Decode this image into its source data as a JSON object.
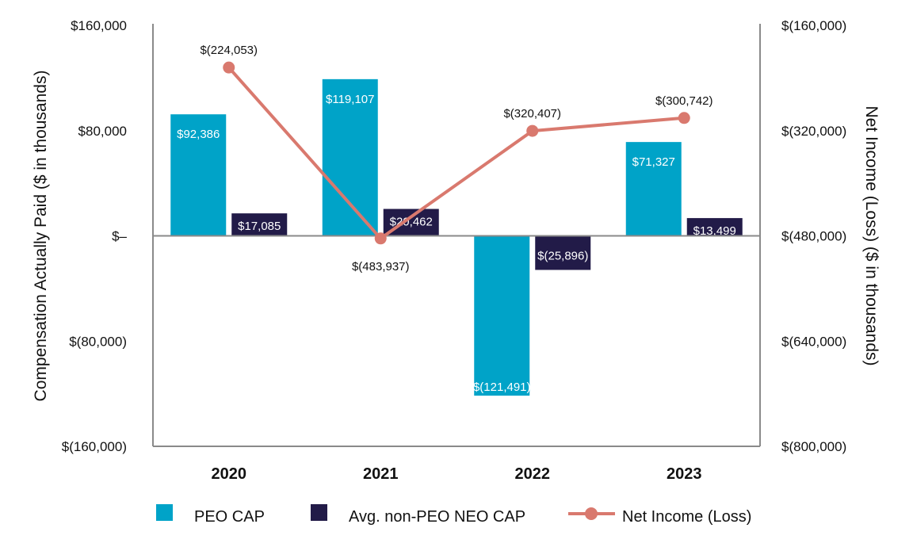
{
  "colors": {
    "peo": "#00A3C8",
    "neo": "#221B48",
    "net_income": "#D9796E",
    "axis": "#8a8a8a"
  },
  "chart_data": {
    "type": "bar",
    "categories": [
      "2020",
      "2021",
      "2022",
      "2023"
    ],
    "series": [
      {
        "name": "PEO CAP",
        "kind": "bar",
        "axis": "left",
        "values": [
          92386,
          119107,
          -121491,
          71327
        ],
        "labels": [
          "$92,386",
          "$119,107",
          "$(121,491)",
          "$71,327"
        ]
      },
      {
        "name": "Avg. non-PEO NEO CAP",
        "kind": "bar",
        "axis": "left",
        "values": [
          17085,
          20462,
          -25896,
          13499
        ],
        "labels": [
          "$17,085",
          "$20,462",
          "$(25,896)",
          "$13,499"
        ]
      },
      {
        "name": "Net Income (Loss)",
        "kind": "line",
        "axis": "right",
        "values": [
          -224053,
          -483937,
          -320407,
          -300742
        ],
        "labels": [
          "$(224,053)",
          "$(483,937)",
          "$(320,407)",
          "$(300,742)"
        ]
      }
    ],
    "y_left": {
      "label": "Compensation Actually Paid ($ in thousands)",
      "range": [
        -160000,
        160000
      ],
      "ticks": [
        160000,
        80000,
        0,
        -80000,
        -160000
      ],
      "tick_labels": [
        "$160,000",
        "$80,000",
        "$–",
        "$(80,000)",
        "$(160,000)"
      ]
    },
    "y_right": {
      "label": "Net Income (Loss) ($ in thousands)",
      "range": [
        -800000,
        -160000
      ],
      "ticks": [
        -160000,
        -320000,
        -480000,
        -640000,
        -800000
      ],
      "tick_labels": [
        "$(160,000)",
        "$(320,000)",
        "$(480,000)",
        "$(640,000)",
        "$(800,000)"
      ]
    },
    "legend": [
      "PEO CAP",
      "Avg. non-PEO NEO CAP",
      "Net Income (Loss)"
    ],
    "legend_position": "bottom",
    "grid": false
  }
}
